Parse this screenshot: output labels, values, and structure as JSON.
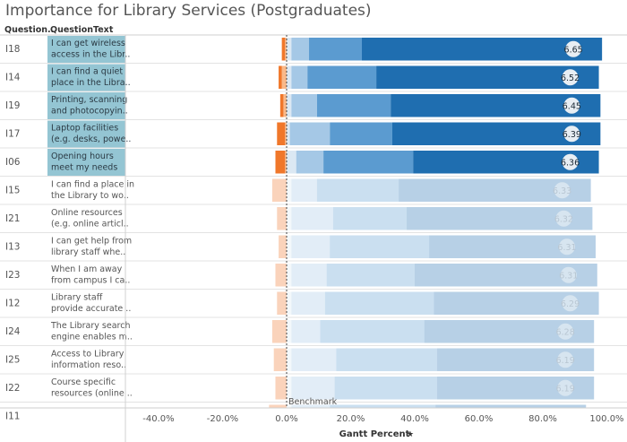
{
  "title": "Importance for Library Services (Postgraduates)",
  "header": {
    "code_label": "Question..",
    "text_label": "QuestionText"
  },
  "colors": {
    "dark_blue": "#1f6eb0",
    "mid_blue": "#5b9bd0",
    "light_blue": "#a5c8e6",
    "pale_blue": "#dbe8f3",
    "dark_orange": "#f0772a",
    "light_orange": "#f9b98a",
    "highlight_cell": "#94c5d3",
    "faded_bar": "#dde6ee"
  },
  "chart_data": {
    "type": "bar",
    "subtype": "diverging stacked gantt",
    "xlabel": "Gantt Percent",
    "xlim": [
      -50,
      100
    ],
    "ticks": [
      -40,
      -20,
      0,
      20,
      40,
      60,
      80,
      100
    ],
    "tick_labels": [
      "-40.0%",
      "-20.0%",
      "0.0%",
      "20.0%",
      "40.0%",
      "60.0%",
      "80.0%",
      "100.0%"
    ],
    "reference_line": {
      "x": 0,
      "label": "Benchmark"
    },
    "rows": [
      {
        "code": "I18",
        "text": [
          "I can get wireless",
          "access in the Libr.."
        ],
        "score": "6.65",
        "highlighted": true,
        "neg": [
          0.5,
          1.0
        ],
        "pos": [
          1.5,
          5.5,
          16.5,
          75.0
        ]
      },
      {
        "code": "I14",
        "text": [
          "I can find a quiet",
          "place in the Libra.."
        ],
        "score": "6.52",
        "highlighted": true,
        "neg": [
          1.5,
          1.0
        ],
        "pos": [
          1.5,
          5.0,
          21.5,
          69.5
        ]
      },
      {
        "code": "I19",
        "text": [
          "Printing, scanning",
          "and photocopyin.."
        ],
        "score": "6.45",
        "highlighted": true,
        "neg": [
          1.0,
          1.0
        ],
        "pos": [
          1.5,
          8.0,
          23.0,
          65.5
        ]
      },
      {
        "code": "I17",
        "text": [
          "Laptop facilities",
          "(e.g. desks, powe.."
        ],
        "score": "6.39",
        "highlighted": true,
        "neg": [
          0.5,
          2.5
        ],
        "pos": [
          1.0,
          12.5,
          19.5,
          65.0
        ]
      },
      {
        "code": "I06",
        "text": [
          "Opening hours",
          "meet my needs"
        ],
        "score": "6.36",
        "highlighted": true,
        "neg": [
          0.5,
          3.0
        ],
        "pos": [
          3.0,
          8.5,
          28.0,
          58.0
        ]
      },
      {
        "code": "I15",
        "text": [
          "I can find a place in",
          "the Library to wo.."
        ],
        "score": "6.33",
        "highlighted": false,
        "neg": [
          0.0,
          4.5
        ],
        "pos": [
          1.5,
          8.0,
          25.5,
          60.0
        ]
      },
      {
        "code": "I21",
        "text": [
          "Online resources",
          "(e.g. online articl.."
        ],
        "score": "6.32",
        "highlighted": false,
        "neg": [
          0.0,
          3.0
        ],
        "pos": [
          1.5,
          13.0,
          23.0,
          58.0
        ]
      },
      {
        "code": "I13",
        "text": [
          "I can get help from",
          "library staff whe.."
        ],
        "score": "6.31",
        "highlighted": false,
        "neg": [
          0.0,
          2.5
        ],
        "pos": [
          1.5,
          12.0,
          31.0,
          52.0
        ]
      },
      {
        "code": "I23",
        "text": [
          "When I am away",
          "from campus I ca.."
        ],
        "score": "6.31",
        "highlighted": false,
        "neg": [
          0.0,
          3.5
        ],
        "pos": [
          1.5,
          11.0,
          27.5,
          57.0
        ]
      },
      {
        "code": "I12",
        "text": [
          "Library staff",
          "provide accurate .."
        ],
        "score": "6.29",
        "highlighted": false,
        "neg": [
          0.0,
          3.0
        ],
        "pos": [
          1.5,
          10.5,
          34.0,
          51.5
        ]
      },
      {
        "code": "I24",
        "text": [
          "The Library search",
          "engine enables m.."
        ],
        "score": "6.28",
        "highlighted": false,
        "neg": [
          0.0,
          4.5
        ],
        "pos": [
          1.5,
          9.0,
          32.5,
          53.0
        ]
      },
      {
        "code": "I25",
        "text": [
          "Access to Library",
          "information reso.."
        ],
        "score": "6.19",
        "highlighted": false,
        "neg": [
          0.0,
          4.0
        ],
        "pos": [
          1.5,
          14.0,
          31.5,
          49.0
        ]
      },
      {
        "code": "I22",
        "text": [
          "Course specific",
          "resources (online .."
        ],
        "score": "6.19",
        "highlighted": false,
        "neg": [
          0.0,
          3.5
        ],
        "pos": [
          1.5,
          13.5,
          32.0,
          49.0
        ]
      },
      {
        "code": "I11",
        "text": [
          "",
          ""
        ],
        "score": "",
        "highlighted": false,
        "neg": [
          0.0,
          5.5
        ],
        "pos": [
          1.5,
          12.0,
          33.0,
          47.0
        ]
      }
    ]
  }
}
